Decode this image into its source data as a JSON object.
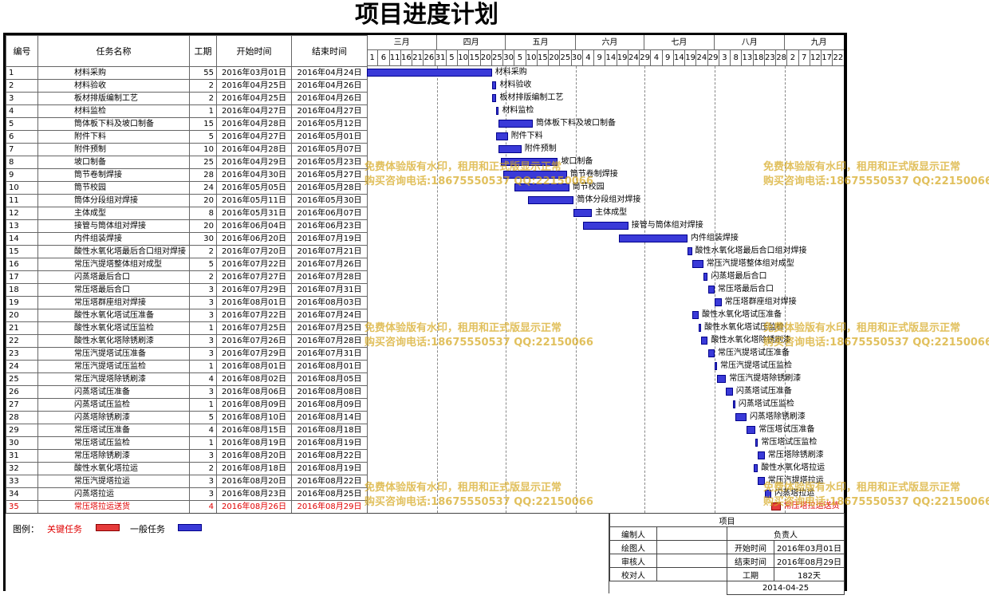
{
  "title": "项目进度计划",
  "columns": {
    "id": "编号",
    "name": "任务名称",
    "days": "工期",
    "start": "开始时间",
    "end": "结束时间"
  },
  "months": [
    "三月",
    "四月",
    "五月",
    "六月",
    "七月",
    "八月",
    "九月"
  ],
  "day_ticks": [
    "1",
    "6",
    "11",
    "16",
    "21",
    "26",
    "31",
    "5",
    "10",
    "15",
    "20",
    "25",
    "30",
    "5",
    "10",
    "15",
    "20",
    "25",
    "30",
    "4",
    "9",
    "14",
    "19",
    "24",
    "29",
    "4",
    "9",
    "14",
    "19",
    "24",
    "29",
    "3",
    "8",
    "13",
    "18",
    "23",
    "28",
    "2",
    "7",
    "12",
    "17",
    "22",
    "27"
  ],
  "timeline": {
    "start": "2016-03-01",
    "end": "2016-09-30"
  },
  "colors": {
    "critical": "#e53b3b",
    "general": "#3a3ad8",
    "watermark": "#d6a81e"
  },
  "tasks": [
    {
      "id": "1",
      "name": "材料采购",
      "days": "55",
      "start": "2016年03月01日",
      "end": "2016年04月24日",
      "s": "2016-03-01",
      "e": "2016-04-24",
      "critical": false
    },
    {
      "id": "2",
      "name": "材料验收",
      "days": "2",
      "start": "2016年04月25日",
      "end": "2016年04月26日",
      "s": "2016-04-25",
      "e": "2016-04-26",
      "critical": false
    },
    {
      "id": "3",
      "name": "板材排版编制工艺",
      "days": "2",
      "start": "2016年04月25日",
      "end": "2016年04月26日",
      "s": "2016-04-25",
      "e": "2016-04-26",
      "critical": false
    },
    {
      "id": "4",
      "name": "材料监检",
      "days": "1",
      "start": "2016年04月27日",
      "end": "2016年04月27日",
      "s": "2016-04-27",
      "e": "2016-04-27",
      "critical": false
    },
    {
      "id": "5",
      "name": "筒体板下料及坡口制备",
      "days": "15",
      "start": "2016年04月28日",
      "end": "2016年05月12日",
      "s": "2016-04-28",
      "e": "2016-05-12",
      "critical": false
    },
    {
      "id": "6",
      "name": "附件下料",
      "days": "5",
      "start": "2016年04月27日",
      "end": "2016年05月01日",
      "s": "2016-04-27",
      "e": "2016-05-01",
      "critical": false
    },
    {
      "id": "7",
      "name": "附件预制",
      "days": "10",
      "start": "2016年04月28日",
      "end": "2016年05月07日",
      "s": "2016-04-28",
      "e": "2016-05-07",
      "critical": false
    },
    {
      "id": "8",
      "name": "坡口制备",
      "days": "25",
      "start": "2016年04月29日",
      "end": "2016年05月23日",
      "s": "2016-04-29",
      "e": "2016-05-23",
      "critical": false
    },
    {
      "id": "9",
      "name": "筒节卷制焊接",
      "days": "28",
      "start": "2016年04月30日",
      "end": "2016年05月27日",
      "s": "2016-04-30",
      "e": "2016-05-27",
      "critical": false
    },
    {
      "id": "10",
      "name": "筒节校园",
      "days": "24",
      "start": "2016年05月05日",
      "end": "2016年05月28日",
      "s": "2016-05-05",
      "e": "2016-05-28",
      "critical": false
    },
    {
      "id": "11",
      "name": "筒体分段组对焊接",
      "days": "20",
      "start": "2016年05月11日",
      "end": "2016年05月30日",
      "s": "2016-05-11",
      "e": "2016-05-30",
      "critical": false
    },
    {
      "id": "12",
      "name": "主体成型",
      "days": "8",
      "start": "2016年05月31日",
      "end": "2016年06月07日",
      "s": "2016-05-31",
      "e": "2016-06-07",
      "critical": false
    },
    {
      "id": "13",
      "name": "接管与筒体组对焊接",
      "days": "20",
      "start": "2016年06月04日",
      "end": "2016年06月23日",
      "s": "2016-06-04",
      "e": "2016-06-23",
      "critical": false
    },
    {
      "id": "14",
      "name": "内件组装焊接",
      "days": "30",
      "start": "2016年06月20日",
      "end": "2016年07月19日",
      "s": "2016-06-20",
      "e": "2016-07-19",
      "critical": false
    },
    {
      "id": "15",
      "name": "酸性水氧化塔最后合口组对焊接",
      "days": "2",
      "start": "2016年07月20日",
      "end": "2016年07月21日",
      "s": "2016-07-20",
      "e": "2016-07-21",
      "critical": false
    },
    {
      "id": "16",
      "name": "常压汽提塔整体组对成型",
      "days": "5",
      "start": "2016年07月22日",
      "end": "2016年07月26日",
      "s": "2016-07-22",
      "e": "2016-07-26",
      "critical": false
    },
    {
      "id": "17",
      "name": "闪蒸塔最后合口",
      "days": "2",
      "start": "2016年07月27日",
      "end": "2016年07月28日",
      "s": "2016-07-27",
      "e": "2016-07-28",
      "critical": false
    },
    {
      "id": "18",
      "name": "常压塔最后合口",
      "days": "3",
      "start": "2016年07月29日",
      "end": "2016年07月31日",
      "s": "2016-07-29",
      "e": "2016-07-31",
      "critical": false
    },
    {
      "id": "19",
      "name": "常压塔群座组对焊接",
      "days": "3",
      "start": "2016年08月01日",
      "end": "2016年08月03日",
      "s": "2016-08-01",
      "e": "2016-08-03",
      "critical": false
    },
    {
      "id": "20",
      "name": "酸性水氧化塔试压准备",
      "days": "3",
      "start": "2016年07月22日",
      "end": "2016年07月24日",
      "s": "2016-07-22",
      "e": "2016-07-24",
      "critical": false
    },
    {
      "id": "21",
      "name": "酸性水氧化塔试压监检",
      "days": "1",
      "start": "2016年07月25日",
      "end": "2016年07月25日",
      "s": "2016-07-25",
      "e": "2016-07-25",
      "critical": false
    },
    {
      "id": "22",
      "name": "酸性水氧化塔除锈刷漆",
      "days": "3",
      "start": "2016年07月26日",
      "end": "2016年07月28日",
      "s": "2016-07-26",
      "e": "2016-07-28",
      "critical": false
    },
    {
      "id": "23",
      "name": "常压汽提塔试压准备",
      "days": "3",
      "start": "2016年07月29日",
      "end": "2016年07月31日",
      "s": "2016-07-29",
      "e": "2016-07-31",
      "critical": false
    },
    {
      "id": "24",
      "name": "常压汽提塔试压监检",
      "days": "1",
      "start": "2016年08月01日",
      "end": "2016年08月01日",
      "s": "2016-08-01",
      "e": "2016-08-01",
      "critical": false
    },
    {
      "id": "25",
      "name": "常压汽提塔除锈刷漆",
      "days": "4",
      "start": "2016年08月02日",
      "end": "2016年08月05日",
      "s": "2016-08-02",
      "e": "2016-08-05",
      "critical": false
    },
    {
      "id": "26",
      "name": "闪蒸塔试压准备",
      "days": "3",
      "start": "2016年08月06日",
      "end": "2016年08月08日",
      "s": "2016-08-06",
      "e": "2016-08-08",
      "critical": false
    },
    {
      "id": "27",
      "name": "闪蒸塔试压监检",
      "days": "1",
      "start": "2016年08月09日",
      "end": "2016年08月09日",
      "s": "2016-08-09",
      "e": "2016-08-09",
      "critical": false
    },
    {
      "id": "28",
      "name": "闪蒸塔除锈刷漆",
      "days": "5",
      "start": "2016年08月10日",
      "end": "2016年08月14日",
      "s": "2016-08-10",
      "e": "2016-08-14",
      "critical": false
    },
    {
      "id": "29",
      "name": "常压塔试压准备",
      "days": "4",
      "start": "2016年08月15日",
      "end": "2016年08月18日",
      "s": "2016-08-15",
      "e": "2016-08-18",
      "critical": false
    },
    {
      "id": "30",
      "name": "常压塔试压监检",
      "days": "1",
      "start": "2016年08月19日",
      "end": "2016年08月19日",
      "s": "2016-08-19",
      "e": "2016-08-19",
      "critical": false
    },
    {
      "id": "31",
      "name": "常压塔除锈刷漆",
      "days": "3",
      "start": "2016年08月20日",
      "end": "2016年08月22日",
      "s": "2016-08-20",
      "e": "2016-08-22",
      "critical": false
    },
    {
      "id": "32",
      "name": "酸性水氧化塔拉运",
      "days": "2",
      "start": "2016年08月18日",
      "end": "2016年08月19日",
      "s": "2016-08-18",
      "e": "2016-08-19",
      "critical": false
    },
    {
      "id": "33",
      "name": "常压汽提塔拉运",
      "days": "3",
      "start": "2016年08月20日",
      "end": "2016年08月22日",
      "s": "2016-08-20",
      "e": "2016-08-22",
      "critical": false
    },
    {
      "id": "34",
      "name": "闪蒸塔拉运",
      "days": "3",
      "start": "2016年08月23日",
      "end": "2016年08月25日",
      "s": "2016-08-23",
      "e": "2016-08-25",
      "critical": false
    },
    {
      "id": "35",
      "name": "常压塔拉运送货",
      "days": "4",
      "start": "2016年08月26日",
      "end": "2016年08月29日",
      "s": "2016-08-26",
      "e": "2016-08-29",
      "critical": true
    }
  ],
  "legend": {
    "title": "图例：",
    "critical_label": "关键任务",
    "general_label": "一般任务"
  },
  "info": {
    "project_label": "项目",
    "editor_label": "编制人",
    "owner_label": "负责人",
    "drawer_label": "绘图人",
    "start_label": "开始时间",
    "start_value": "2016年03月01日",
    "reviewer_label": "审核人",
    "end_label": "结束时间",
    "end_value": "2016年08月29日",
    "checker_label": "校对人",
    "duration_label": "工期",
    "duration_value": "182天",
    "date_value": "2014-04-25"
  },
  "watermark": {
    "line1": "免费体验版有水印，租用和正式版显示正常",
    "line2": "购买咨询电话:18675550537 QQ:22150066"
  }
}
